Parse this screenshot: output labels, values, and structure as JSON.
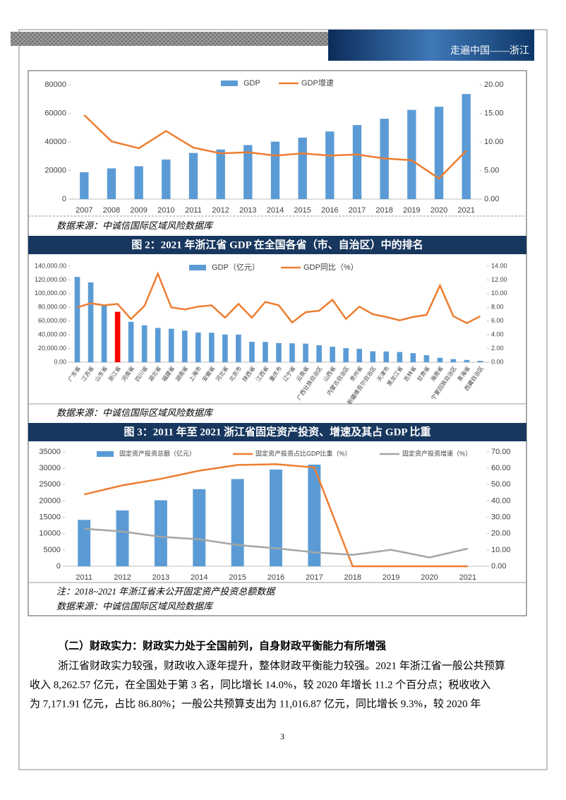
{
  "header": {
    "title": "走遍中国——浙江"
  },
  "captions": [
    "图 2：2021 年浙江省 GDP 在全国各省（市、自治区）中的排名",
    "图 3：2011 年至 2021 浙江省固定资产投资、增速及其占 GDP 比重"
  ],
  "sources": [
    "数据来源：中诚信国际区域风险数据库",
    "数据来源：中诚信国际区域风险数据库",
    "数据来源：中诚信国际区域风险数据库"
  ],
  "note": "注：2018~2021 年浙江省未公开固定资产投资总额数据",
  "section": {
    "heading": "（二）财政实力：财政实力处于全国前列，自身财政平衡能力有所增强",
    "lines": [
      "浙江省财政实力较强，财政收入逐年提升，整体财政平衡能力较强。2021 年浙江省一般公共预算",
      "收入 8,262.57 亿元，在全国处于第 3 名，同比增长 14.0%，较 2020 年增长 11.2 个百分点；税收收入",
      "为 7,171.91 亿元，占比 86.80%；一般公共预算支出为 11,016.87 亿元，同比增长 9.3%，较 2020 年"
    ]
  },
  "page_number": "3",
  "chart_data": [
    {
      "type": "combo",
      "categories": [
        "2007",
        "2008",
        "2009",
        "2010",
        "2011",
        "2012",
        "2013",
        "2014",
        "2015",
        "2016",
        "2017",
        "2018",
        "2019",
        "2020",
        "2021"
      ],
      "series": [
        {
          "name": "GDP",
          "color": "#5b9bd5",
          "kind": "bar",
          "values": [
            18800,
            21500,
            23000,
            27700,
            32300,
            34700,
            37800,
            40200,
            43000,
            47300,
            51800,
            56200,
            62400,
            64600,
            73500
          ]
        },
        {
          "name": "GDP增速",
          "color": "#ed7d31",
          "kind": "line",
          "axis": "y2",
          "values": [
            14.7,
            10.1,
            8.9,
            11.9,
            9.0,
            8.0,
            8.2,
            7.6,
            8.0,
            7.6,
            7.8,
            7.1,
            6.8,
            3.6,
            8.5
          ]
        }
      ],
      "ylim": [
        0,
        80000
      ],
      "yticks": [
        0,
        20000,
        40000,
        60000,
        80000
      ],
      "y2lim": [
        0,
        20
      ],
      "y2ticks": [
        {
          "value": 0,
          "label": "0.00"
        },
        {
          "value": 5,
          "label": "5.00"
        },
        {
          "value": 10,
          "label": "10.00"
        },
        {
          "value": 15,
          "label": "15.00"
        },
        {
          "value": 20,
          "label": "20.00"
        }
      ]
    },
    {
      "type": "combo",
      "categories": [
        "广东省",
        "江苏省",
        "山东省",
        "浙江省",
        "河南省",
        "四川省",
        "湖北省",
        "福建省",
        "湖南省",
        "上海市",
        "安徽省",
        "河北省",
        "北京市",
        "陕西省",
        "江西省",
        "重庆市",
        "辽宁省",
        "云南省",
        "广西壮族自治区",
        "山西省",
        "内蒙古自治区",
        "贵州省",
        "新疆维吾尔自治区",
        "天津市",
        "黑龙江省",
        "吉林省",
        "甘肃省",
        "海南省",
        "宁夏回族自治区",
        "青海省",
        "西藏自治区"
      ],
      "series": [
        {
          "name": "GDP（亿元）",
          "color": "#5b9bd5",
          "kind": "bar",
          "colors": [
            "#5b9bd5",
            "#5b9bd5",
            "#5b9bd5",
            "#ff0000",
            "#5b9bd5",
            "#5b9bd5",
            "#5b9bd5",
            "#5b9bd5",
            "#5b9bd5",
            "#5b9bd5",
            "#5b9bd5",
            "#5b9bd5",
            "#5b9bd5",
            "#5b9bd5",
            "#5b9bd5",
            "#5b9bd5",
            "#5b9bd5",
            "#5b9bd5",
            "#5b9bd5",
            "#5b9bd5",
            "#5b9bd5",
            "#5b9bd5",
            "#5b9bd5",
            "#5b9bd5",
            "#5b9bd5",
            "#5b9bd5",
            "#5b9bd5",
            "#5b9bd5",
            "#5b9bd5",
            "#5b9bd5",
            "#5b9bd5"
          ],
          "values": [
            124370,
            116364,
            83096,
            73516,
            58887,
            53851,
            50013,
            48810,
            46063,
            43215,
            42959,
            40391,
            40270,
            29801,
            29620,
            27894,
            27584,
            27147,
            24741,
            22590,
            20514,
            19586,
            15984,
            15695,
            14879,
            13236,
            10243,
            6475,
            4522,
            3347,
            2080
          ]
        },
        {
          "name": "GDP同比（%）",
          "color": "#ed7d31",
          "kind": "line",
          "axis": "y2",
          "values": [
            8.0,
            8.6,
            8.3,
            8.5,
            6.3,
            8.2,
            12.9,
            8.0,
            7.7,
            8.1,
            8.3,
            6.5,
            8.5,
            6.5,
            8.8,
            8.3,
            5.8,
            7.3,
            7.5,
            9.1,
            6.3,
            8.1,
            7.0,
            6.6,
            6.1,
            6.6,
            6.9,
            11.2,
            6.7,
            5.7,
            6.7
          ]
        }
      ],
      "ylim": [
        0,
        140000
      ],
      "yticks": [
        {
          "value": 0,
          "label": "0.00"
        },
        {
          "value": 20000,
          "label": "20,000.00"
        },
        {
          "value": 40000,
          "label": "40,000.00"
        },
        {
          "value": 60000,
          "label": "60,000.00"
        },
        {
          "value": 80000,
          "label": "80,000.00"
        },
        {
          "value": 100000,
          "label": "100,000.00"
        },
        {
          "value": 120000,
          "label": "120,000.00"
        },
        {
          "value": 140000,
          "label": "140,000.00"
        }
      ],
      "y2lim": [
        0,
        14
      ],
      "y2ticks": [
        {
          "value": 0,
          "label": "0.00"
        },
        {
          "value": 2,
          "label": "2.00"
        },
        {
          "value": 4,
          "label": "4.00"
        },
        {
          "value": 6,
          "label": "6.00"
        },
        {
          "value": 8,
          "label": "8.00"
        },
        {
          "value": 10,
          "label": "10.00"
        },
        {
          "value": 12,
          "label": "12.00"
        },
        {
          "value": 14,
          "label": "14.00"
        }
      ]
    },
    {
      "type": "combo",
      "categories": [
        "2011",
        "2012",
        "2013",
        "2014",
        "2015",
        "2016",
        "2017",
        "2018",
        "2019",
        "2020",
        "2021"
      ],
      "series": [
        {
          "name": "固定资产投资总额（亿元）",
          "color": "#5b9bd5",
          "kind": "bar",
          "values": [
            14200,
            17100,
            20200,
            23600,
            26700,
            29600,
            31100,
            null,
            null,
            null,
            null
          ]
        },
        {
          "name": "固定资产投资占比GDP比重（%）",
          "color": "#ed7d31",
          "kind": "line",
          "axis": "y2",
          "values": [
            44,
            49.5,
            53.5,
            58.5,
            62,
            62.5,
            60.5,
            0,
            0,
            0,
            0
          ]
        },
        {
          "name": "固定资产投资增速（%）",
          "color": "#a5a5a5",
          "kind": "line",
          "axis": "y2",
          "values": [
            23,
            21.3,
            18,
            16.5,
            13,
            11,
            8.5,
            7,
            10.1,
            5.4,
            10.8
          ]
        }
      ],
      "ylim": [
        0,
        35000
      ],
      "yticks": [
        0,
        5000,
        10000,
        15000,
        20000,
        25000,
        30000,
        35000
      ],
      "y2lim": [
        0,
        70
      ],
      "y2ticks": [
        {
          "value": 0,
          "label": "0.00"
        },
        {
          "value": 10,
          "label": "10.00"
        },
        {
          "value": 20,
          "label": "20.00"
        },
        {
          "value": 30,
          "label": "30.00"
        },
        {
          "value": 40,
          "label": "40.00"
        },
        {
          "value": 50,
          "label": "50.00"
        },
        {
          "value": 60,
          "label": "60.00"
        },
        {
          "value": 70,
          "label": "70.00"
        }
      ]
    }
  ]
}
